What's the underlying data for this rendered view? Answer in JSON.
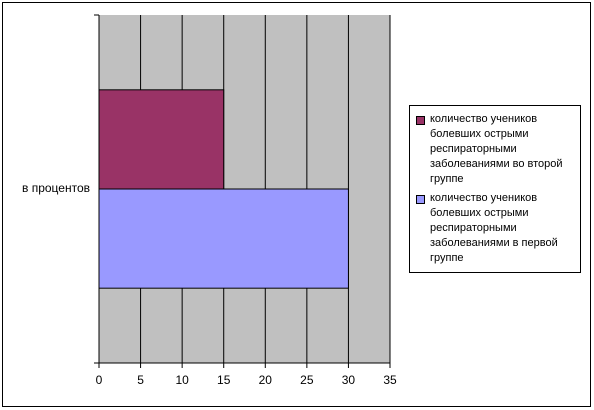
{
  "chart_data": {
    "type": "bar",
    "orientation": "horizontal",
    "categories": [
      "в процентов"
    ],
    "series": [
      {
        "name": "количество учеников болевших острыми респираторными заболеваниями в первой группе",
        "color": "#9999ff",
        "values": [
          30
        ]
      },
      {
        "name": "количество учеников болевших острыми респираторными заболеваниями во второй группе",
        "color": "#993366",
        "values": [
          15
        ]
      }
    ],
    "xlim": [
      0,
      35
    ],
    "xticks": [
      0,
      5,
      10,
      15,
      20,
      25,
      30,
      35
    ],
    "grid": true,
    "legend": "right"
  }
}
